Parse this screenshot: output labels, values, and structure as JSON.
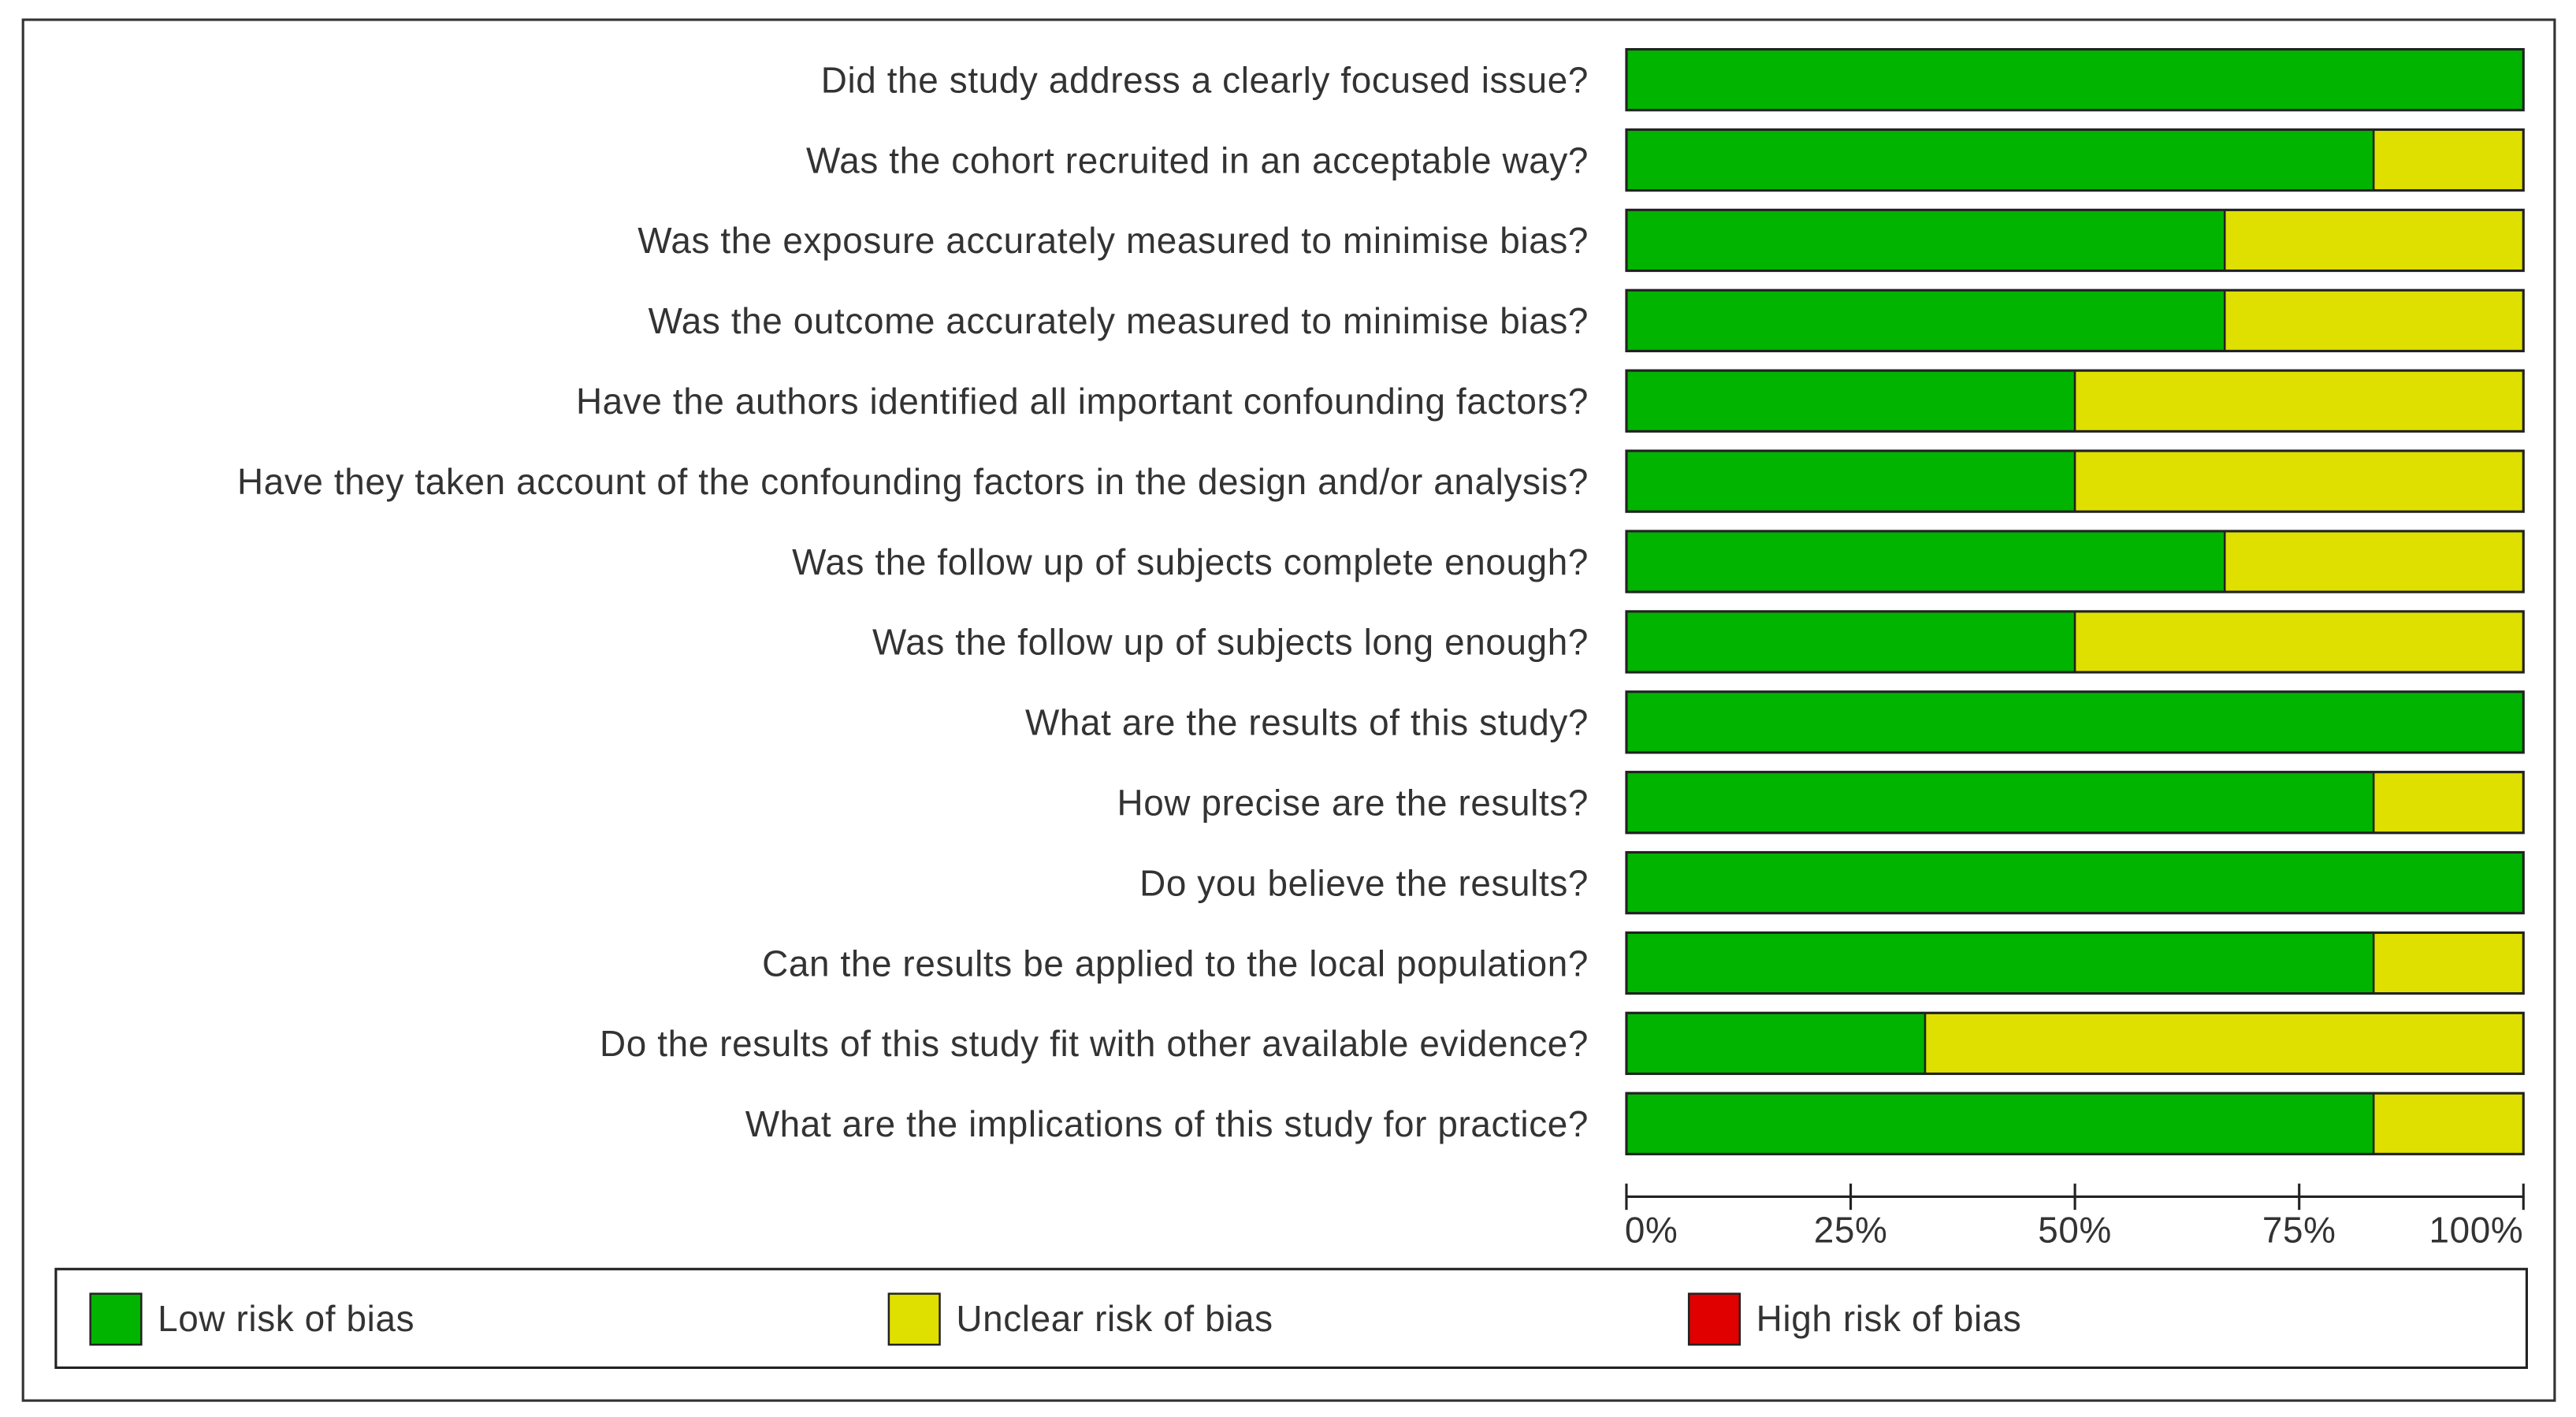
{
  "chart_data": {
    "type": "stacked-bar-horizontal",
    "categories": [
      "Did the study address a clearly focused issue?",
      "Was the cohort recruited in an acceptable way?",
      "Was the exposure accurately measured to minimise bias?",
      "Was the outcome accurately measured to minimise bias?",
      "Have the authors identified all important confounding factors?",
      "Have they taken account of the confounding factors in the design and/or analysis?",
      "Was the follow up of subjects complete enough?",
      "Was the follow up of subjects long enough?",
      "What are the results of this study?",
      "How precise are the results?",
      "Do you believe the results?",
      "Can the results be applied to the local population?",
      "Do the results of this study fit with other available evidence?",
      "What are the implications of this study for practice?"
    ],
    "series": [
      {
        "name": "Low risk of bias",
        "color": "#00b400",
        "values": [
          100,
          83.3,
          66.7,
          66.7,
          50,
          50,
          66.7,
          50,
          100,
          83.3,
          100,
          83.3,
          33.3,
          83.3
        ]
      },
      {
        "name": "Unclear risk of bias",
        "color": "#e0e000",
        "values": [
          0,
          16.7,
          33.3,
          33.3,
          50,
          50,
          33.3,
          50,
          0,
          16.7,
          0,
          16.7,
          66.7,
          16.7
        ]
      },
      {
        "name": "High risk of bias",
        "color": "#e00000",
        "values": [
          0,
          0,
          0,
          0,
          0,
          0,
          0,
          0,
          0,
          0,
          0,
          0,
          0,
          0
        ]
      }
    ],
    "xlim": [
      0,
      100
    ],
    "xticks": [
      {
        "value": 0,
        "label": "0%"
      },
      {
        "value": 25,
        "label": "25%"
      },
      {
        "value": 50,
        "label": "50%"
      },
      {
        "value": 75,
        "label": "75%"
      },
      {
        "value": 100,
        "label": "100%"
      }
    ],
    "legend": "bottom"
  }
}
